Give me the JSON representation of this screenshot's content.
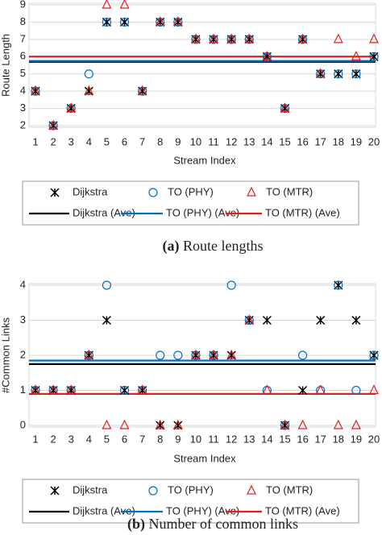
{
  "chart_data": [
    {
      "type": "scatter",
      "caption_label": "(a)",
      "caption": "Route lengths",
      "x_label": "Stream Index",
      "y_label": "Route Length",
      "categories": [
        "1",
        "2",
        "3",
        "4",
        "5",
        "6",
        "7",
        "8",
        "9",
        "10",
        "11",
        "12",
        "13",
        "14",
        "15",
        "16",
        "17",
        "18",
        "19",
        "20"
      ],
      "ylim": [
        2,
        9
      ],
      "yticks": [
        2,
        3,
        4,
        5,
        6,
        7,
        8,
        9
      ],
      "grid": true,
      "series": [
        {
          "name": "Dijkstra",
          "color": "#000000",
          "marker": "x",
          "values": [
            4,
            2,
            3,
            4,
            8,
            8,
            4,
            8,
            8,
            7,
            7,
            7,
            7,
            6,
            3,
            7,
            5,
            5,
            5,
            6
          ]
        },
        {
          "name": "TO (PHY)",
          "color": "#0070c0",
          "marker": "circle",
          "values": [
            4,
            2,
            3,
            5,
            8,
            8,
            4,
            8,
            8,
            7,
            7,
            7,
            7,
            6,
            3,
            7,
            5,
            5,
            5,
            6
          ]
        },
        {
          "name": "TO (MTR)",
          "color": "#e02020",
          "marker": "triangle",
          "values": [
            4,
            2,
            3,
            4,
            9,
            9,
            4,
            8,
            8,
            7,
            7,
            7,
            7,
            6,
            3,
            7,
            5,
            7,
            6,
            7
          ]
        },
        {
          "name": "Dijkstra (Ave)",
          "color": "#000000",
          "marker": "hline",
          "value": 5.7
        },
        {
          "name": "TO (PHY) (Ave)",
          "color": "#0070c0",
          "marker": "hline",
          "value": 5.75
        },
        {
          "name": "TO (MTR) (Ave)",
          "color": "#e02020",
          "marker": "hline",
          "value": 6.0
        }
      ]
    },
    {
      "type": "scatter",
      "caption_label": "(b)",
      "caption": "Number of common links",
      "x_label": "Stream Index",
      "y_label": "#Common Links",
      "categories": [
        "1",
        "2",
        "3",
        "4",
        "5",
        "6",
        "7",
        "8",
        "9",
        "10",
        "11",
        "12",
        "13",
        "14",
        "15",
        "16",
        "17",
        "18",
        "19",
        "20"
      ],
      "ylim": [
        0,
        4
      ],
      "yticks": [
        0,
        1,
        2,
        3,
        4
      ],
      "grid": true,
      "series": [
        {
          "name": "Dijkstra",
          "color": "#000000",
          "marker": "x",
          "values": [
            1,
            1,
            1,
            2,
            3,
            1,
            1,
            0,
            0,
            2,
            2,
            2,
            3,
            3,
            0,
            1,
            3,
            4,
            3,
            2
          ]
        },
        {
          "name": "TO (PHY)",
          "color": "#0070c0",
          "marker": "circle",
          "values": [
            1,
            1,
            1,
            2,
            4,
            1,
            1,
            2,
            2,
            2,
            2,
            4,
            3,
            1,
            0,
            2,
            1,
            4,
            1,
            2
          ]
        },
        {
          "name": "TO (MTR)",
          "color": "#e02020",
          "marker": "triangle",
          "values": [
            1,
            1,
            1,
            2,
            0,
            0,
            1,
            0,
            0,
            2,
            2,
            2,
            3,
            1,
            0,
            0,
            1,
            0,
            0,
            1
          ]
        },
        {
          "name": "Dijkstra (Ave)",
          "color": "#000000",
          "marker": "hline",
          "value": 1.75
        },
        {
          "name": "TO (PHY) (Ave)",
          "color": "#0070c0",
          "marker": "hline",
          "value": 1.85
        },
        {
          "name": "TO (MTR) (Ave)",
          "color": "#e02020",
          "marker": "hline",
          "value": 0.9
        }
      ]
    }
  ]
}
